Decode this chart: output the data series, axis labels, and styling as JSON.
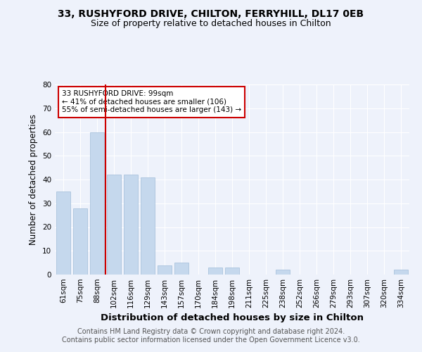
{
  "title_line1": "33, RUSHYFORD DRIVE, CHILTON, FERRYHILL, DL17 0EB",
  "title_line2": "Size of property relative to detached houses in Chilton",
  "xlabel": "Distribution of detached houses by size in Chilton",
  "ylabel": "Number of detached properties",
  "categories": [
    "61sqm",
    "75sqm",
    "88sqm",
    "102sqm",
    "116sqm",
    "129sqm",
    "143sqm",
    "157sqm",
    "170sqm",
    "184sqm",
    "198sqm",
    "211sqm",
    "225sqm",
    "238sqm",
    "252sqm",
    "266sqm",
    "279sqm",
    "293sqm",
    "307sqm",
    "320sqm",
    "334sqm"
  ],
  "values": [
    35,
    28,
    60,
    42,
    42,
    41,
    4,
    5,
    0,
    3,
    3,
    0,
    0,
    2,
    0,
    0,
    0,
    0,
    0,
    0,
    2
  ],
  "bar_color": "#c5d8ed",
  "bar_edge_color": "#a0bcd8",
  "vline_x_index": 2.5,
  "vline_color": "#cc0000",
  "annotation_text": "33 RUSHYFORD DRIVE: 99sqm\n← 41% of detached houses are smaller (106)\n55% of semi-detached houses are larger (143) →",
  "annotation_box_color": "#ffffff",
  "annotation_box_edge_color": "#cc0000",
  "ylim": [
    0,
    80
  ],
  "yticks": [
    0,
    10,
    20,
    30,
    40,
    50,
    60,
    70,
    80
  ],
  "footer_text": "Contains HM Land Registry data © Crown copyright and database right 2024.\nContains public sector information licensed under the Open Government Licence v3.0.",
  "background_color": "#eef2fb",
  "grid_color": "#ffffff",
  "title_fontsize": 10,
  "subtitle_fontsize": 9,
  "tick_fontsize": 7.5,
  "ylabel_fontsize": 8.5,
  "xlabel_fontsize": 9.5,
  "footer_fontsize": 7
}
